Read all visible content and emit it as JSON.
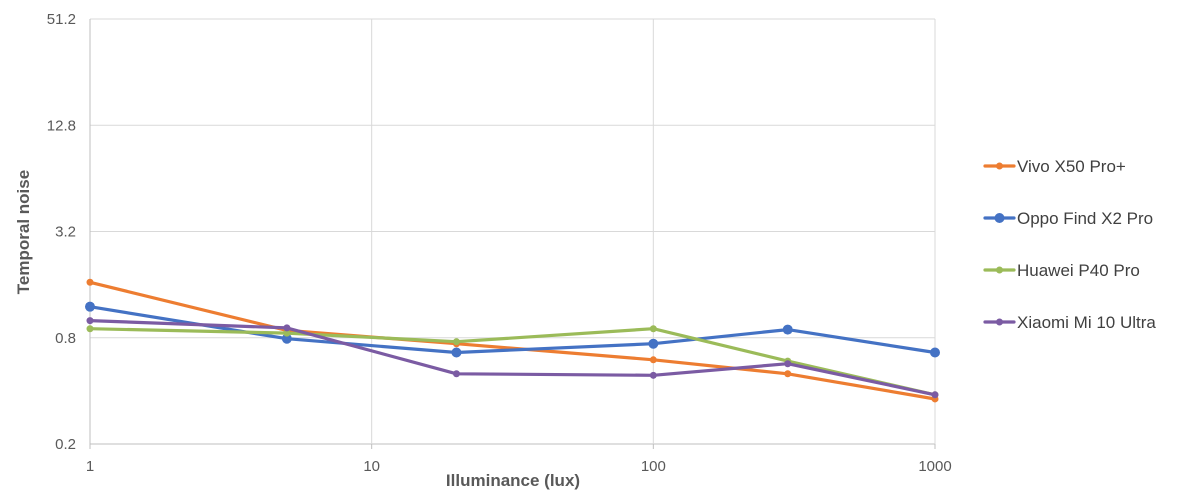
{
  "chart_data": {
    "type": "line",
    "xlabel": "Illuminance (lux)",
    "ylabel": "Temporal noise",
    "x_scale": "log",
    "y_scale": "log",
    "xlim": [
      1,
      1000
    ],
    "ylim": [
      0.2,
      51.2
    ],
    "x_ticks": [
      "1",
      "10",
      "100",
      "1000"
    ],
    "y_ticks": [
      "0.2",
      "0.8",
      "3.2",
      "12.8",
      "51.2"
    ],
    "grid": true,
    "legend": "right",
    "series": [
      {
        "name": "Vivo X50 Pro+",
        "color": "#ED7D31",
        "x": [
          1,
          5,
          20,
          100,
          300,
          1000
        ],
        "y": [
          1.65,
          0.88,
          0.74,
          0.6,
          0.5,
          0.36
        ]
      },
      {
        "name": "Oppo Find X2 Pro",
        "color": "#4472C4",
        "x": [
          1,
          5,
          20,
          100,
          300,
          1000
        ],
        "y": [
          1.2,
          0.79,
          0.66,
          0.74,
          0.89,
          0.66
        ]
      },
      {
        "name": "Huawei P40 Pro",
        "color": "#9BBB59",
        "x": [
          1,
          5,
          20,
          100,
          300,
          1000
        ],
        "y": [
          0.9,
          0.85,
          0.76,
          0.9,
          0.59,
          0.38
        ]
      },
      {
        "name": "Xiaomi Mi 10 Ultra",
        "color": "#7B5BA3",
        "x": [
          1,
          5,
          20,
          100,
          300,
          1000
        ],
        "y": [
          1.0,
          0.91,
          0.5,
          0.49,
          0.57,
          0.38
        ]
      }
    ]
  }
}
